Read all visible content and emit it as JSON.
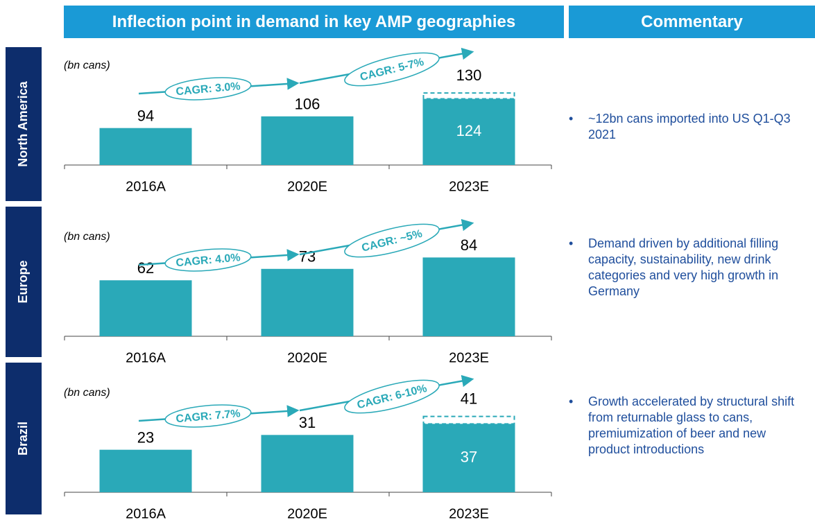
{
  "headers": {
    "left": "Inflection point in demand in key AMP geographies",
    "right": "Commentary"
  },
  "commentary": [
    "~12bn cans imported into US Q1-Q3 2021",
    "Demand driven by additional filling capacity, sustainability, new drink categories and very high growth in Germany",
    "Growth accelerated by structural shift from returnable glass to cans, premiumization of beer and new product introductions"
  ],
  "chart_data": [
    {
      "type": "bar",
      "title": "North America",
      "unit_note": "(bn cans)",
      "categories": [
        "2016A",
        "2020E",
        "2023E"
      ],
      "values": [
        94,
        106,
        124
      ],
      "high_values": [
        null,
        null,
        130
      ],
      "cagr_labels": [
        "CAGR: 3.0%",
        "CAGR: 5-7%"
      ],
      "color": "#2aa9b8",
      "ylim": [
        56,
        170
      ]
    },
    {
      "type": "bar",
      "title": "Europe",
      "unit_note": "(bn cans)",
      "categories": [
        "2016A",
        "2020E",
        "2023E"
      ],
      "values": [
        62,
        73,
        84
      ],
      "high_values": [
        null,
        null,
        null
      ],
      "cagr_labels": [
        "CAGR: 4.0%",
        "CAGR: ~5%"
      ],
      "color": "#2aa9b8",
      "ylim": [
        8,
        115
      ]
    },
    {
      "type": "bar",
      "title": "Brazil",
      "unit_note": "(bn cans)",
      "categories": [
        "2016A",
        "2020E",
        "2023E"
      ],
      "values": [
        23,
        31,
        37
      ],
      "high_values": [
        null,
        null,
        41
      ],
      "cagr_labels": [
        "CAGR: 7.7%",
        "CAGR: 6-10%"
      ],
      "color": "#2aa9b8",
      "ylim": [
        0,
        60
      ]
    }
  ]
}
